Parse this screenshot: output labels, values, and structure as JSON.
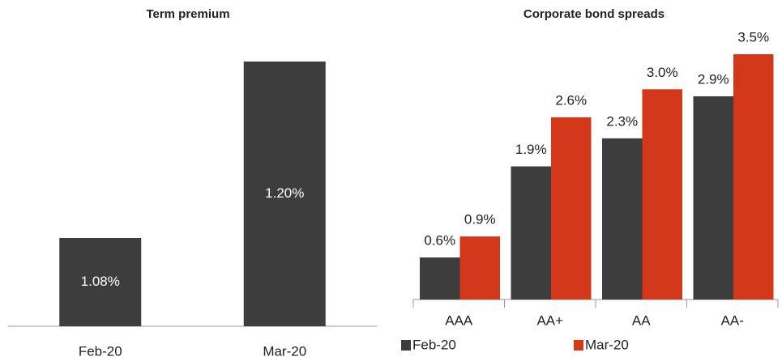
{
  "chart_data": [
    {
      "type": "bar",
      "title": "Term premium",
      "categories": [
        "Feb-20",
        "Mar-20"
      ],
      "values": [
        1.08,
        1.2
      ],
      "value_labels": [
        "1.08%",
        "1.20%"
      ],
      "color": "#3d3d3d",
      "ylim": [
        1.02,
        1.2
      ]
    },
    {
      "type": "bar",
      "title": "Corporate bond spreads",
      "categories": [
        "AAA",
        "AA+",
        "AA",
        "AA-"
      ],
      "series": [
        {
          "name": "Feb-20",
          "color": "#3d3d3d",
          "values": [
            0.6,
            1.9,
            2.3,
            2.9
          ],
          "value_labels": [
            "0.6%",
            "1.9%",
            "2.3%",
            "2.9%"
          ]
        },
        {
          "name": "Mar-20",
          "color": "#d4381a",
          "values": [
            0.9,
            2.6,
            3.0,
            3.5
          ],
          "value_labels": [
            "0.9%",
            "2.6%",
            "3.0%",
            "3.5%"
          ]
        }
      ],
      "ylim": [
        0,
        3.5
      ]
    }
  ]
}
